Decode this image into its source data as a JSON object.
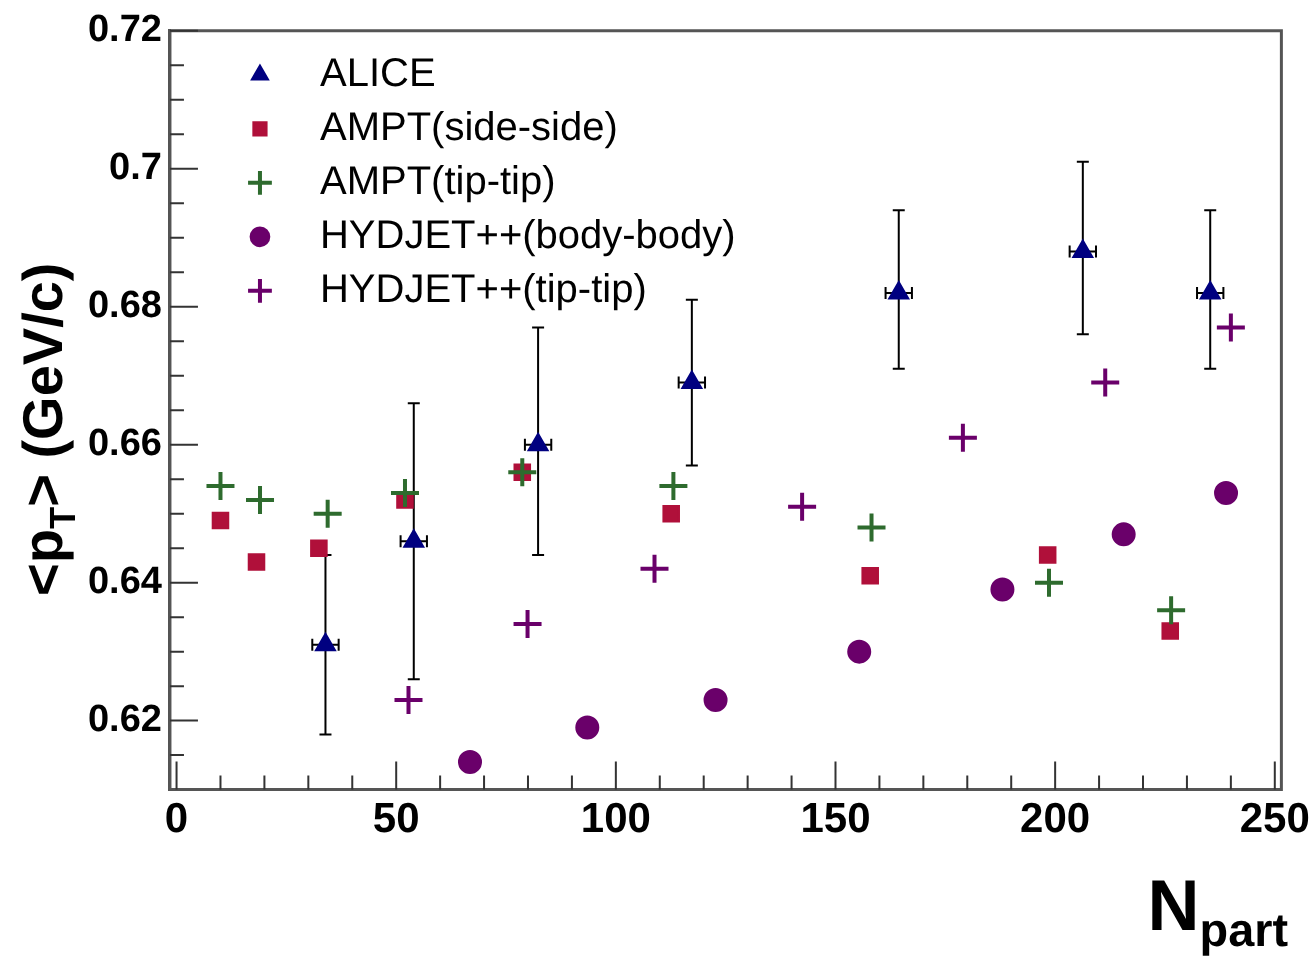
{
  "chart_data": {
    "type": "scatter",
    "xlabel": "N$_{part}$",
    "ylabel": "<p$_{T}$> (GeV/c)",
    "xlim": [
      -1.5,
      251.5
    ],
    "ylim": [
      0.61,
      0.72
    ],
    "xticks": [
      0,
      {
        "value": 10,
        "label": null
      },
      {
        "value": 20,
        "label": null
      },
      {
        "value": 30,
        "label": null
      },
      {
        "value": 40,
        "label": null
      },
      50,
      {
        "value": 60,
        "label": null
      },
      {
        "value": 70,
        "label": null
      },
      {
        "value": 80,
        "label": null
      },
      {
        "value": 90,
        "label": null
      },
      100,
      {
        "value": 110,
        "label": null
      },
      {
        "value": 120,
        "label": null
      },
      {
        "value": 130,
        "label": null
      },
      {
        "value": 140,
        "label": null
      },
      150,
      {
        "value": 160,
        "label": null
      },
      {
        "value": 170,
        "label": null
      },
      {
        "value": 180,
        "label": null
      },
      {
        "value": 190,
        "label": null
      },
      200,
      {
        "value": 210,
        "label": null
      },
      {
        "value": 220,
        "label": null
      },
      {
        "value": 230,
        "label": null
      },
      {
        "value": 240,
        "label": null
      },
      250
    ],
    "yticks": [
      {
        "value": 0.615,
        "label": null
      },
      0.62,
      {
        "value": 0.625,
        "label": null
      },
      {
        "value": 0.63,
        "label": null
      },
      {
        "value": 0.635,
        "label": null
      },
      0.64,
      {
        "value": 0.645,
        "label": null
      },
      {
        "value": 0.65,
        "label": null
      },
      {
        "value": 0.655,
        "label": null
      },
      0.66,
      {
        "value": 0.665,
        "label": null
      },
      {
        "value": 0.67,
        "label": null
      },
      {
        "value": 0.675,
        "label": null
      },
      0.68,
      {
        "value": 0.685,
        "label": null
      },
      {
        "value": 0.69,
        "label": null
      },
      {
        "value": 0.695,
        "label": null
      },
      0.7,
      {
        "value": 0.705,
        "label": null
      },
      {
        "value": 0.71,
        "label": null
      },
      {
        "value": 0.715,
        "label": null
      },
      0.72
    ],
    "grid": false,
    "legend": "top left",
    "series": [
      {
        "name": "ALICE",
        "color": "#000080",
        "marker": "triangle",
        "x": [
          33.9,
          54.0,
          82.3,
          117.3,
          164.4,
          206.3,
          235.3
        ],
        "values": [
          0.631,
          0.646,
          0.66,
          0.669,
          0.682,
          0.688,
          0.682
        ],
        "errors": [
          [
            0.618,
            0.644
          ],
          [
            0.626,
            0.666
          ],
          [
            0.644,
            0.677
          ],
          [
            0.657,
            0.681
          ],
          [
            0.671,
            0.694
          ],
          [
            0.676,
            0.701
          ],
          [
            0.671,
            0.694
          ]
        ],
        "xerrors": [
          3,
          3,
          3,
          3,
          3,
          3,
          3
        ]
      },
      {
        "name": "AMPT(side-side)",
        "color": "#b0103a",
        "marker": "square",
        "x": [
          10.0,
          18.2,
          32.4,
          52.0,
          78.7,
          112.6,
          157.9,
          198.3,
          226.2
        ],
        "values": [
          0.649,
          0.643,
          0.645,
          0.652,
          0.656,
          0.65,
          0.641,
          0.644,
          0.633
        ]
      },
      {
        "name": "AMPT(tip-tip)",
        "color": "#2e6b2e",
        "marker": "cross",
        "x": [
          10.0,
          19.0,
          34.4,
          52.0,
          78.7,
          113.1,
          158.2,
          198.6,
          226.4
        ],
        "values": [
          0.654,
          0.652,
          0.65,
          0.653,
          0.656,
          0.654,
          0.648,
          0.64,
          0.636
        ]
      },
      {
        "name": "HYDJET++(body-body)",
        "color": "#6a006a",
        "marker": "circle",
        "x": [
          66.8,
          93.5,
          122.7,
          155.4,
          188.0,
          215.6,
          238.9
        ],
        "values": [
          0.614,
          0.619,
          0.623,
          0.63,
          0.639,
          0.647,
          0.653
        ]
      },
      {
        "name": "HYDJET++(tip-tip)",
        "color": "#6a006a",
        "marker": "cross",
        "x": [
          52.8,
          79.9,
          108.8,
          142.4,
          179.0,
          211.4,
          240.0
        ],
        "values": [
          0.623,
          0.634,
          0.642,
          0.651,
          0.661,
          0.669,
          0.677
        ]
      }
    ]
  }
}
